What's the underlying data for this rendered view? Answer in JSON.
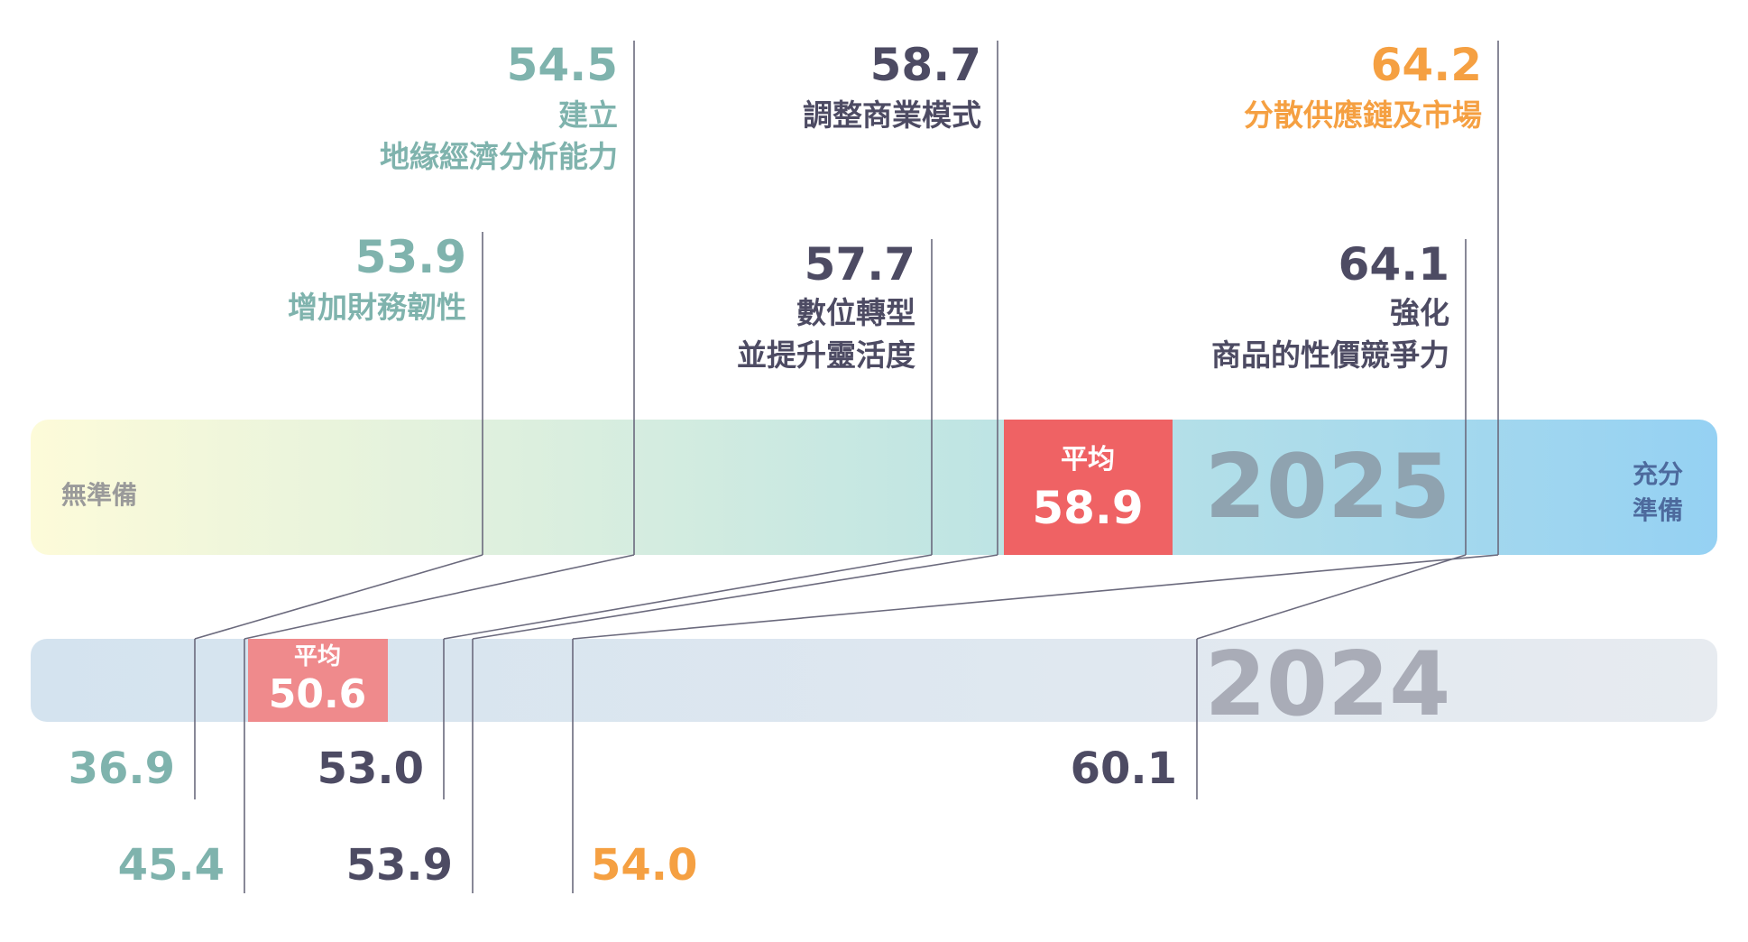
{
  "colors": {
    "teal": "#7fb3ad",
    "slate": "#4d4b63",
    "orange": "#f5a042",
    "avg2025": "#ef6264",
    "avg2024": "#ef8a8c",
    "bar2025_start": "#fdfbd9",
    "bar2025_mid": "#c0e5e3",
    "bar2025_end": "#95d1f3",
    "bar2024_start": "#d4e3ef",
    "bar2024_end": "#e7ebf0",
    "line": "#6b6a7d",
    "year2025": "#8fa3b0",
    "year2024": "#a9acb7",
    "scale_low": "#9a9a9a",
    "scale_high": "#4d6a9d"
  },
  "chart_data": {
    "type": "comparison_scale",
    "scale_labels": {
      "low": "無準備",
      "high_line1": "充分",
      "high_line2": "準備"
    },
    "years": [
      "2025",
      "2024"
    ],
    "averages": {
      "2025": {
        "label": "平均",
        "value": "58.9"
      },
      "2024": {
        "label": "平均",
        "value": "50.6"
      }
    },
    "series": [
      {
        "name_lines": [
          "增加財務韌性"
        ],
        "v2025": "53.9",
        "v2024": "36.9",
        "color": "teal"
      },
      {
        "name_lines": [
          "建立",
          "地緣經濟分析能力"
        ],
        "v2025": "54.5",
        "v2024": "45.4",
        "color": "teal"
      },
      {
        "name_lines": [
          "數位轉型",
          "並提升靈活度"
        ],
        "v2025": "57.7",
        "v2024": "53.0",
        "color": "slate"
      },
      {
        "name_lines": [
          "調整商業模式"
        ],
        "v2025": "58.7",
        "v2024": "53.9",
        "color": "slate"
      },
      {
        "name_lines": [
          "強化",
          "商品的性價競爭力"
        ],
        "v2025": "64.1",
        "v2024": "60.1",
        "color": "slate"
      },
      {
        "name_lines": [
          "分散供應鏈及市場"
        ],
        "v2025": "64.2",
        "v2024": "54.0",
        "color": "orange"
      }
    ]
  }
}
